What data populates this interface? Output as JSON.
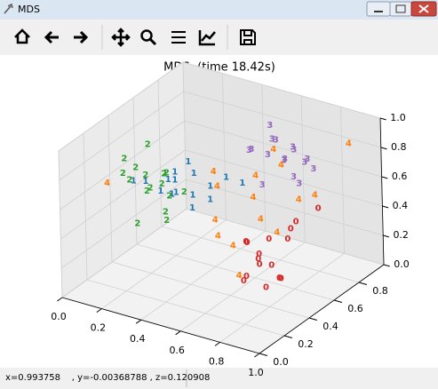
{
  "window": {
    "title": "MDS",
    "status": "x=0.993758    , y=-0.00368788 , z=0.120908"
  },
  "chart_data": {
    "type": "scatter3d",
    "title": "MDS: (time 18.42s)",
    "xlim": [
      0,
      1
    ],
    "ylim": [
      0,
      1
    ],
    "zlim": [
      0,
      1
    ],
    "xticks": [
      {
        "value": 0,
        "label": "0.0"
      },
      0.2,
      0.4,
      0.6,
      0.8,
      {
        "value": 1,
        "label": "1.0"
      }
    ],
    "yticks": [
      {
        "value": 0,
        "label": "0.0"
      },
      0.2,
      0.4,
      0.6,
      0.8
    ],
    "zticks": [
      {
        "value": 0,
        "label": "0.0"
      },
      0.2,
      0.4,
      0.6,
      0.8,
      {
        "value": 1,
        "label": "1.0"
      }
    ],
    "grid": true,
    "series": [
      {
        "name": "0",
        "color": "#d62728",
        "x": [
          0.78,
          0.85,
          0.72,
          0.9,
          0.82,
          0.75,
          0.88,
          0.8,
          0.7,
          0.93,
          0.84,
          0.77,
          0.86,
          0.74,
          0.9,
          0.81
        ],
        "y": [
          0.35,
          0.25,
          0.45,
          0.4,
          0.55,
          0.3,
          0.5,
          0.2,
          0.38,
          0.6,
          0.42,
          0.28,
          0.33,
          0.5,
          0.22,
          0.48
        ],
        "z": [
          0.35,
          0.4,
          0.3,
          0.5,
          0.45,
          0.25,
          0.55,
          0.3,
          0.42,
          0.6,
          0.2,
          0.5,
          0.35,
          0.38,
          0.28,
          0.15
        ]
      },
      {
        "name": "1",
        "color": "#1f77b4",
        "x": [
          0.2,
          0.25,
          0.3,
          0.15,
          0.35,
          0.22,
          0.28,
          0.4,
          0.18,
          0.32,
          0.26,
          0.38,
          0.12,
          0.24,
          0.45,
          0.3
        ],
        "y": [
          0.55,
          0.5,
          0.6,
          0.45,
          0.65,
          0.58,
          0.48,
          0.7,
          0.52,
          0.55,
          0.62,
          0.6,
          0.4,
          0.68,
          0.75,
          0.45
        ],
        "z": [
          0.55,
          0.5,
          0.6,
          0.58,
          0.5,
          0.45,
          0.62,
          0.55,
          0.48,
          0.4,
          0.65,
          0.45,
          0.6,
          0.38,
          0.5,
          0.7
        ]
      },
      {
        "name": "2",
        "color": "#2ca02c",
        "x": [
          0.1,
          0.15,
          0.2,
          0.08,
          0.18,
          0.25,
          0.12,
          0.22,
          0.3,
          0.05,
          0.16,
          0.28,
          0.14,
          0.35,
          0.2,
          0.1
        ],
        "y": [
          0.4,
          0.45,
          0.5,
          0.38,
          0.55,
          0.48,
          0.42,
          0.35,
          0.52,
          0.44,
          0.6,
          0.4,
          0.5,
          0.3,
          0.3,
          0.55
        ],
        "z": [
          0.6,
          0.62,
          0.55,
          0.65,
          0.58,
          0.5,
          0.68,
          0.6,
          0.52,
          0.7,
          0.55,
          0.45,
          0.5,
          0.48,
          0.4,
          0.75
        ]
      },
      {
        "name": "3",
        "color": "#9467bd",
        "x": [
          0.55,
          0.6,
          0.65,
          0.5,
          0.7,
          0.58,
          0.62,
          0.68,
          0.52,
          0.75,
          0.6,
          0.66,
          0.57,
          0.72,
          0.64,
          0.5
        ],
        "y": [
          0.8,
          0.85,
          0.78,
          0.75,
          0.88,
          0.82,
          0.9,
          0.8,
          0.7,
          0.85,
          0.76,
          0.92,
          0.72,
          0.78,
          0.86,
          0.9
        ],
        "z": [
          0.7,
          0.65,
          0.72,
          0.75,
          0.68,
          0.8,
          0.7,
          0.6,
          0.78,
          0.65,
          0.85,
          0.62,
          0.55,
          0.58,
          0.75,
          0.82
        ]
      },
      {
        "name": "4",
        "color": "#ff7f0e",
        "x": [
          0.6,
          0.45,
          0.7,
          0.55,
          0.8,
          0.5,
          0.65,
          0.4,
          0.75,
          0.62,
          0.58,
          0.85,
          0.48,
          0.68,
          0.05,
          0.9
        ],
        "y": [
          0.6,
          0.55,
          0.5,
          0.7,
          0.65,
          0.45,
          0.75,
          0.6,
          0.55,
          0.4,
          0.8,
          0.7,
          0.5,
          0.35,
          0.3,
          0.9
        ],
        "z": [
          0.55,
          0.6,
          0.5,
          0.62,
          0.58,
          0.45,
          0.7,
          0.65,
          0.4,
          0.35,
          0.75,
          0.6,
          0.3,
          0.2,
          0.62,
          0.85
        ]
      }
    ]
  }
}
